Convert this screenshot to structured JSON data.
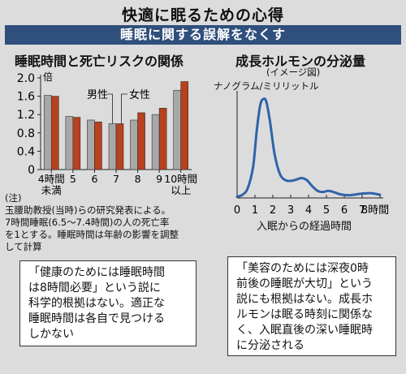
{
  "title": "快適に眠るための心得",
  "subtitle": "睡眠に関する誤解をなくす",
  "chart_data": [
    {
      "type": "bar",
      "title": "睡眠時間と死亡リスクの関係",
      "ylabel": "倍",
      "ylim": [
        0,
        2.0
      ],
      "yticks": [
        "0",
        "0.4",
        "0.8",
        "1.2",
        "1.6",
        "2.0"
      ],
      "categories": [
        "4時間未満",
        "5",
        "6",
        "7",
        "8",
        "9",
        "10時間以上"
      ],
      "category_lines": [
        [
          "4時間",
          "未満"
        ],
        [
          "5"
        ],
        [
          "6"
        ],
        [
          "7"
        ],
        [
          "8"
        ],
        [
          "9"
        ],
        [
          "10時間",
          "以上"
        ]
      ],
      "series": [
        {
          "name": "男性",
          "color": "#a8a8a8",
          "values": [
            1.62,
            1.16,
            1.08,
            1.0,
            1.08,
            1.2,
            1.73
          ]
        },
        {
          "name": "女性",
          "color": "#b8411e",
          "values": [
            1.6,
            1.14,
            1.04,
            1.0,
            1.24,
            1.34,
            1.92
          ]
        }
      ],
      "note_lines": [
        "(注)",
        "玉腰助教授(当時)らの研究発表による。",
        "7時間睡眠(6.5〜7.4時間)の人の死亡率",
        "を1とする。睡眠時間は年齢の影響を調整",
        "して計算"
      ]
    },
    {
      "type": "line",
      "title": "成長ホルモンの分泌量",
      "subtitle": "(イメージ図)",
      "ylabel": "ナノグラム/ミリリットル",
      "xlabel": "入眠からの経過時間",
      "xticks": [
        "0",
        "1",
        "2",
        "3",
        "4",
        "5",
        "6",
        "7",
        "8時間"
      ],
      "ylim": [
        0,
        27
      ],
      "color": "#2f63a8",
      "series": [
        {
          "x": [
            0,
            0.3,
            0.6,
            0.9,
            1.1,
            1.3,
            1.5,
            1.65,
            1.85,
            2.1,
            2.4,
            2.7,
            3.0,
            3.3,
            3.6,
            3.9,
            4.2,
            4.5,
            4.8,
            5.1,
            5.4,
            5.8,
            6.3,
            7.0,
            7.5,
            8.0
          ],
          "y": [
            0.3,
            0.8,
            2.5,
            8.0,
            17.0,
            23.5,
            25.0,
            24.0,
            19.0,
            11.0,
            6.0,
            4.5,
            4.3,
            4.6,
            5.0,
            4.5,
            3.0,
            1.8,
            1.5,
            1.8,
            1.5,
            0.9,
            0.7,
            1.1,
            1.2,
            0.8
          ]
        }
      ]
    }
  ],
  "box_left": [
    "「健康のためには睡眠時間",
    "は8時間必要」という説に",
    "科学的根拠はない。適正な",
    "睡眠時間は各自で見つける",
    "しかない"
  ],
  "box_right": [
    "「美容のためには深夜0時",
    "前後の睡眠が大切」という",
    "説にも根拠はない。成長ホ",
    "ルモンは眠る時刻に関係な",
    "く、入眠直後の深い睡眠時",
    "に分泌される"
  ]
}
